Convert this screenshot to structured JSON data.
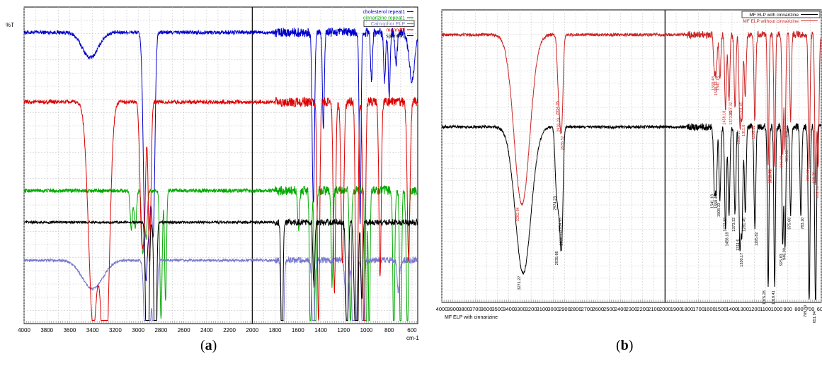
{
  "chart_data": [
    {
      "type": "line",
      "panel_label": "(a)",
      "panel_letter": "a",
      "ylabel": "%T",
      "xlabel": "cm-1",
      "xlim": [
        4000,
        550
      ],
      "x_ticks": [
        "4000",
        "3800",
        "3600",
        "3400",
        "3200",
        "3000",
        "2800",
        "2600",
        "2400",
        "2200",
        "2000",
        "1800",
        "1600",
        "1400",
        "1200",
        "1000",
        "800",
        "600"
      ],
      "legend_position": "top-right",
      "grid": true,
      "series": [
        {
          "name": "cholesterol repeat1",
          "color": "#0000cc",
          "baseline": 0.92,
          "noise": 0.006,
          "peaks": [
            [
              3420,
              0.08,
              70
            ],
            [
              2935,
              0.75,
              18
            ],
            [
              2900,
              0.45,
              15
            ],
            [
              2867,
              0.6,
              14
            ],
            [
              1465,
              0.55,
              10
            ],
            [
              1377,
              0.3,
              8
            ],
            [
              1055,
              0.6,
              8
            ],
            [
              955,
              0.15,
              8
            ],
            [
              840,
              0.15,
              8
            ],
            [
              800,
              0.2,
              8
            ],
            [
              740,
              0.1,
              10
            ],
            [
              600,
              0.15,
              25
            ]
          ]
        },
        {
          "name": "cinnarizine repeat1",
          "color": "#00aa00",
          "baseline": 0.42,
          "noise": 0.006,
          "peaks": [
            [
              3060,
              0.12,
              10
            ],
            [
              3025,
              0.12,
              10
            ],
            [
              2960,
              0.2,
              10
            ],
            [
              2930,
              0.15,
              10
            ],
            [
              2800,
              0.4,
              10
            ],
            [
              2760,
              0.35,
              8
            ],
            [
              1595,
              0.12,
              8
            ],
            [
              1490,
              0.5,
              8
            ],
            [
              1448,
              0.6,
              8
            ],
            [
              1300,
              0.3,
              8
            ],
            [
              1140,
              0.45,
              8
            ],
            [
              1005,
              0.8,
              7
            ],
            [
              975,
              0.5,
              7
            ],
            [
              760,
              0.5,
              8
            ],
            [
              700,
              0.55,
              8
            ],
            [
              640,
              0.45,
              10
            ]
          ]
        },
        {
          "name": "Carnophor ELP",
          "color": "#7777cc",
          "baseline": 0.2,
          "noise": 0.004,
          "peaks": [
            [
              3400,
              0.09,
              90
            ],
            [
              2920,
              0.7,
              18
            ],
            [
              2855,
              0.5,
              14
            ],
            [
              1735,
              0.4,
              10
            ],
            [
              1465,
              0.3,
              10
            ],
            [
              1170,
              0.2,
              14
            ],
            [
              1105,
              0.75,
              12
            ],
            [
              1030,
              0.3,
              10
            ],
            [
              720,
              0.1,
              10
            ]
          ]
        },
        {
          "name": "mannitol",
          "color": "#dd0000",
          "baseline": 0.7,
          "noise": 0.006,
          "peaks": [
            [
              3395,
              0.7,
              40
            ],
            [
              3290,
              0.9,
              35
            ],
            [
              2970,
              0.4,
              15
            ],
            [
              2945,
              0.3,
              12
            ],
            [
              2900,
              0.5,
              12
            ],
            [
              1420,
              0.7,
              10
            ],
            [
              1280,
              0.6,
              10
            ],
            [
              1210,
              0.5,
              12
            ],
            [
              1085,
              0.9,
              10
            ],
            [
              1020,
              0.85,
              10
            ],
            [
              880,
              0.55,
              10
            ],
            [
              630,
              0.5,
              12
            ]
          ]
        },
        {
          "name": "span601",
          "color": "#000000",
          "baseline": 0.32,
          "noise": 0.004,
          "peaks": [
            [
              2920,
              0.7,
              12
            ],
            [
              2850,
              0.6,
              10
            ],
            [
              1740,
              0.5,
              8
            ],
            [
              1460,
              0.2,
              8
            ],
            [
              1170,
              0.4,
              10
            ],
            [
              1100,
              0.3,
              10
            ],
            [
              1080,
              0.5,
              8
            ],
            [
              1040,
              0.25,
              8
            ]
          ]
        }
      ]
    },
    {
      "type": "line",
      "panel_label": "(b)",
      "panel_letter": "b",
      "xlabel": "MF ELP with cinnarizine",
      "xlim": [
        4000,
        600
      ],
      "x_ticks": [
        "4000",
        "3900",
        "3800",
        "3700",
        "3600",
        "3500",
        "3400",
        "3300",
        "3200",
        "3100",
        "3000",
        "2900",
        "2800",
        "2700",
        "2600",
        "2500",
        "2400",
        "2300",
        "2200",
        "2100",
        "2000",
        "1900",
        "1800",
        "1700",
        "1600",
        "1500",
        "1400",
        "1300",
        "1200",
        "1100",
        "1000",
        "900",
        "800",
        "700",
        "600"
      ],
      "legend_position": "top-right",
      "grid": true,
      "series": [
        {
          "name": "MF ELP with cinnarizine",
          "color": "#000000",
          "baseline": 0.6,
          "noise": 0.005,
          "peaks": [
            [
              3271,
              0.5,
              70
            ],
            [
              2974,
              0.2,
              12
            ],
            [
              2954,
              0.2,
              10
            ],
            [
              2935,
              0.3,
              10
            ],
            [
              2920,
              0.25,
              10
            ],
            [
              1558,
              0.2,
              8
            ],
            [
              1541,
              0.2,
              8
            ],
            [
              1508,
              0.25,
              8
            ],
            [
              1458,
              0.35,
              8
            ],
            [
              1427,
              0.3,
              8
            ],
            [
              1373,
              0.3,
              8
            ],
            [
              1330,
              0.4,
              8
            ],
            [
              1311,
              0.35,
              8
            ],
            [
              1281,
              0.3,
              8
            ],
            [
              1195,
              0.35,
              8
            ],
            [
              1076,
              0.55,
              7
            ],
            [
              1018,
              0.55,
              7
            ],
            [
              946,
              0.4,
              7
            ],
            [
              925,
              0.42,
              7
            ],
            [
              875,
              0.3,
              7
            ],
            [
              783,
              0.3,
              8
            ],
            [
              709,
              0.6,
              8
            ],
            [
              651,
              0.62,
              8
            ]
          ]
        },
        {
          "name": "MF ELP without cinnarizine",
          "color": "#cc2222",
          "baseline": 0.915,
          "noise": 0.005,
          "peaks": [
            [
              3282,
              0.58,
              70
            ],
            [
              2954,
              0.18,
              12
            ],
            [
              2935,
              0.22,
              10
            ],
            [
              2920,
              0.2,
              10
            ],
            [
              1558,
              0.12,
              8
            ],
            [
              1541,
              0.12,
              8
            ],
            [
              1508,
              0.15,
              8
            ],
            [
              1458,
              0.25,
              8
            ],
            [
              1427,
              0.22,
              8
            ],
            [
              1373,
              0.25,
              8
            ],
            [
              1330,
              0.3,
              8
            ],
            [
              1311,
              0.28,
              8
            ],
            [
              1281,
              0.22,
              8
            ],
            [
              1195,
              0.3,
              8
            ],
            [
              1076,
              0.45,
              7
            ],
            [
              1018,
              0.45,
              7
            ],
            [
              946,
              0.4,
              7
            ],
            [
              925,
              0.38,
              7
            ],
            [
              875,
              0.3,
              7
            ],
            [
              709,
              0.45,
              8
            ],
            [
              651,
              0.5,
              8
            ],
            [
              628,
              0.45,
              8
            ]
          ]
        }
      ],
      "annotations": {
        "red": [
          {
            "x": 3282,
            "label": "3282.84"
          },
          {
            "x": 2954,
            "label": "2954.95"
          },
          {
            "x": 2935,
            "label": "2935.52"
          },
          {
            "x": 2920,
            "label": "2920.23"
          },
          {
            "x": 1558,
            "label": "1558.48"
          },
          {
            "x": 1541,
            "label": "1541.18"
          },
          {
            "x": 1508,
            "label": "1508.33"
          },
          {
            "x": 1458,
            "label": "1458.18"
          },
          {
            "x": 1427,
            "label": "1427.32"
          },
          {
            "x": 1373,
            "label": "1373.32"
          },
          {
            "x": 1330,
            "label": "1330.17"
          },
          {
            "x": 1311,
            "label": "1311.6"
          },
          {
            "x": 1281,
            "label": "1281.45"
          },
          {
            "x": 1195,
            "label": "1195.82"
          },
          {
            "x": 1076,
            "label": "1076.28"
          },
          {
            "x": 1018,
            "label": "1018.41"
          },
          {
            "x": 946,
            "label": "946.98"
          },
          {
            "x": 925,
            "label": "925.83"
          },
          {
            "x": 875,
            "label": "875.68"
          },
          {
            "x": 709,
            "label": "709.82"
          },
          {
            "x": 651,
            "label": "651.96"
          },
          {
            "x": 628,
            "label": "628.79"
          }
        ],
        "black": [
          {
            "x": 3271,
            "label": "3271.27"
          },
          {
            "x": 2974,
            "label": "2974.23"
          },
          {
            "x": 2954,
            "label": "2954.95"
          },
          {
            "x": 2935,
            "label": "2935.66"
          },
          {
            "x": 2920,
            "label": "2920.23"
          },
          {
            "x": 1558,
            "label": "1558.48"
          },
          {
            "x": 1541,
            "label": "1541.18"
          },
          {
            "x": 1508,
            "label": "1508.33"
          },
          {
            "x": 1458,
            "label": "1458.18"
          },
          {
            "x": 1427,
            "label": "1427.32"
          },
          {
            "x": 1373,
            "label": "1373.32"
          },
          {
            "x": 1330,
            "label": "1330.17"
          },
          {
            "x": 1311,
            "label": "1311.6"
          },
          {
            "x": 1281,
            "label": "1281.45"
          },
          {
            "x": 1195,
            "label": "1195.82"
          },
          {
            "x": 1076,
            "label": "1076.28"
          },
          {
            "x": 1018,
            "label": "1018.41"
          },
          {
            "x": 946,
            "label": "946.98"
          },
          {
            "x": 925,
            "label": "925.83"
          },
          {
            "x": 875,
            "label": "875.68"
          },
          {
            "x": 783,
            "label": "783.10"
          },
          {
            "x": 709,
            "label": "709.80"
          },
          {
            "x": 651,
            "label": "651.94"
          }
        ]
      }
    }
  ]
}
